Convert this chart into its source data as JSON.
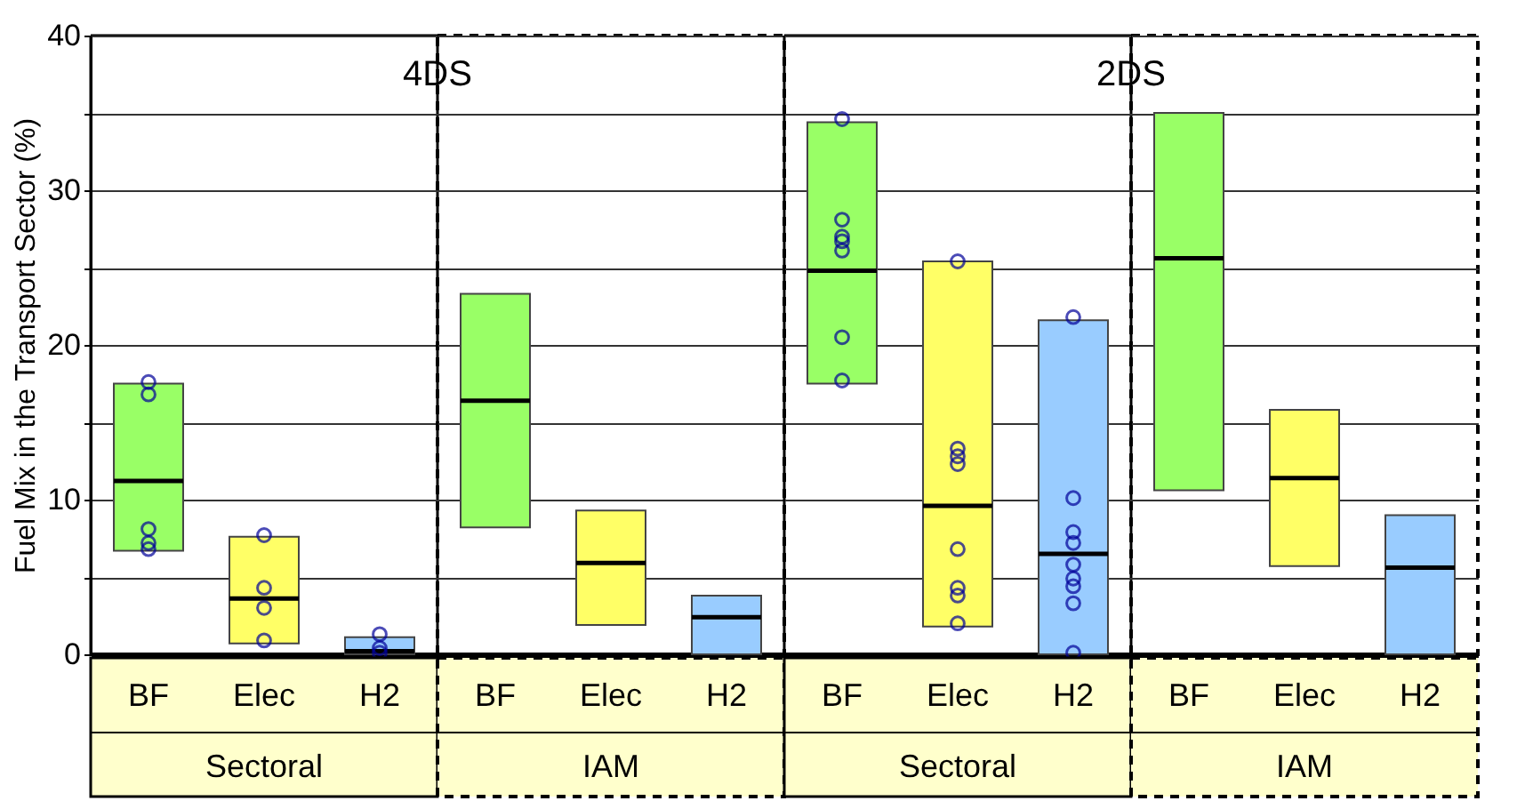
{
  "chart_data": [
    {
      "type": "box",
      "title": "4DS",
      "ylabel": "Fuel Mix in the Transport Sector (%)",
      "categories": [
        "BF",
        "Elec",
        "H2"
      ],
      "boxes": [
        {
          "low": 6.7,
          "q1": 6.7,
          "median": 11.2,
          "q3": 17.5,
          "high": 17.5,
          "outliers": [
            17.6,
            16.8,
            8.1,
            7.2,
            6.8
          ]
        },
        {
          "low": 0.7,
          "q1": 0.7,
          "median": 3.6,
          "q3": 7.6,
          "high": 7.6,
          "outliers": [
            7.7,
            4.3,
            3.0,
            0.9
          ]
        },
        {
          "low": 0,
          "q1": 0,
          "median": 0.2,
          "q3": 1.1,
          "high": 1.1,
          "outliers": [
            1.3,
            0.4,
            0.1
          ]
        }
      ],
      "colors": [
        "#99ff66",
        "#ffff66",
        "#99ccff"
      ],
      "annotations": [
        "Sectoral"
      ],
      "ylim": [
        0,
        40
      ],
      "yticks": [
        0,
        {
          "value": 5,
          "label": null
        },
        10,
        {
          "value": 15,
          "label": null
        },
        20,
        {
          "value": 25,
          "label": null
        },
        30,
        {
          "value": 35,
          "label": null
        },
        40
      ],
      "grid": "y"
    },
    {
      "type": "box",
      "categories": [
        "BF",
        "Elec",
        "H2"
      ],
      "boxes": [
        {
          "low": 8.2,
          "q1": 8.2,
          "median": 16.4,
          "q3": 23.3,
          "high": 23.3
        },
        {
          "low": 1.9,
          "q1": 1.9,
          "median": 5.9,
          "q3": 9.3,
          "high": 9.3
        },
        {
          "low": 0,
          "q1": 0,
          "median": 2.4,
          "q3": 3.8,
          "high": 3.8
        }
      ],
      "colors": [
        "#99ff66",
        "#ffff66",
        "#99ccff"
      ],
      "annotations": [
        "IAM"
      ],
      "ylim": [
        0,
        40
      ],
      "yticks": [
        0,
        {
          "value": 5,
          "label": null
        },
        10,
        {
          "value": 15,
          "label": null
        },
        20,
        {
          "value": 25,
          "label": null
        },
        30,
        {
          "value": 35,
          "label": null
        },
        40
      ],
      "grid": "y",
      "tick_labels": "x"
    },
    {
      "type": "box",
      "title": "2DS",
      "categories": [
        "BF",
        "Elec",
        "H2"
      ],
      "boxes": [
        {
          "low": 17.5,
          "q1": 17.5,
          "median": 24.8,
          "q3": 34.4,
          "high": 34.4,
          "outliers": [
            34.6,
            28.1,
            27.0,
            26.7,
            26.1,
            20.5,
            17.7
          ]
        },
        {
          "low": 1.8,
          "q1": 1.8,
          "median": 9.6,
          "q3": 25.4,
          "high": 25.4,
          "outliers": [
            25.4,
            13.3,
            12.8,
            12.3,
            6.8,
            4.3,
            3.8,
            2.0
          ]
        },
        {
          "low": 0,
          "q1": 0,
          "median": 6.5,
          "q3": 21.6,
          "high": 21.6,
          "outliers": [
            21.8,
            10.1,
            7.9,
            7.2,
            5.8,
            4.9,
            4.4,
            3.3,
            0.1
          ]
        }
      ],
      "colors": [
        "#99ff66",
        "#ffff66",
        "#99ccff"
      ],
      "annotations": [
        "Sectoral"
      ],
      "ylim": [
        0,
        40
      ],
      "yticks": [
        0,
        {
          "value": 5,
          "label": null
        },
        10,
        {
          "value": 15,
          "label": null
        },
        20,
        {
          "value": 25,
          "label": null
        },
        30,
        {
          "value": 35,
          "label": null
        },
        40
      ],
      "grid": "y",
      "tick_labels": "x"
    },
    {
      "type": "box",
      "categories": [
        "BF",
        "Elec",
        "H2"
      ],
      "boxes": [
        {
          "low": 10.6,
          "q1": 10.6,
          "median": 25.6,
          "q3": 35.0,
          "high": 35.0
        },
        {
          "low": 5.7,
          "q1": 5.7,
          "median": 11.4,
          "q3": 15.8,
          "high": 15.8
        },
        {
          "low": 0,
          "q1": 0,
          "median": 5.6,
          "q3": 9.0,
          "high": 9.0
        }
      ],
      "colors": [
        "#99ff66",
        "#ffff66",
        "#99ccff"
      ],
      "annotations": [
        "IAM"
      ],
      "ylim": [
        0,
        40
      ],
      "yticks": [
        0,
        {
          "value": 5,
          "label": null
        },
        10,
        {
          "value": 15,
          "label": null
        },
        20,
        {
          "value": 25,
          "label": null
        },
        30,
        {
          "value": 35,
          "label": null
        },
        40
      ],
      "grid": "y",
      "tick_labels": "x"
    }
  ]
}
